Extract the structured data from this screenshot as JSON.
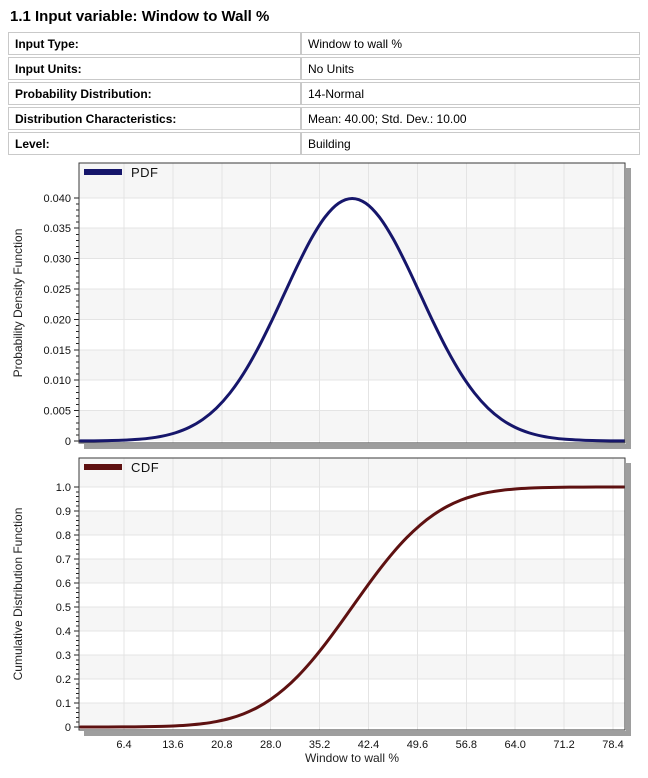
{
  "page": {
    "title": "1.1 Input variable: Window to Wall %"
  },
  "table": {
    "rows": [
      {
        "label": "Input Type:",
        "value": "Window to wall %"
      },
      {
        "label": "Input Units:",
        "value": "No Units"
      },
      {
        "label": "Probability Distribution:",
        "value": "14-Normal"
      },
      {
        "label": "Distribution Characteristics:",
        "value": "Mean: 40.00; Std. Dev.: 10.00"
      },
      {
        "label": "Level:",
        "value": "Building"
      }
    ]
  },
  "colors": {
    "pdf_line": "#16166b",
    "cdf_line": "#5e1111",
    "grid_line": "#e4e4e4",
    "band_gray": "#f6f6f6",
    "band_white": "#ffffff",
    "plot_border": "#3a3a3a",
    "shadow": "#9e9e9e"
  },
  "chart_data": [
    {
      "type": "line",
      "name": "pdf",
      "legend": "PDF",
      "xlabel": "",
      "ylabel": "Probability Density Function",
      "distribution": {
        "type": "Normal",
        "mean": 40.0,
        "std_dev": 10.0
      },
      "xlim": [
        0,
        80
      ],
      "ylim": [
        0,
        0.046
      ],
      "grid": true,
      "legend_position": "top-left",
      "x_ticks": [
        6.4,
        13.6,
        20.8,
        28.0,
        35.2,
        42.4,
        49.6,
        56.8,
        64.0,
        71.2,
        78.4
      ],
      "x_tick_labels_visible": false,
      "y_ticks": [
        "0",
        "0.005",
        "0.010",
        "0.015",
        "0.020",
        "0.025",
        "0.030",
        "0.035",
        "0.040"
      ],
      "y_major_step": 0.005,
      "x": [
        0,
        2,
        4,
        6,
        8,
        10,
        12,
        14,
        16,
        18,
        20,
        22,
        24,
        26,
        28,
        30,
        32,
        34,
        36,
        38,
        40,
        42,
        44,
        46,
        48,
        50,
        52,
        54,
        56,
        58,
        60,
        62,
        64,
        66,
        68,
        70,
        72,
        74,
        76,
        78,
        80
      ],
      "y": [
        1.3e-05,
        2.9e-05,
        6.1e-05,
        0.000123,
        0.000238,
        0.000443,
        0.000792,
        0.001358,
        0.002239,
        0.003548,
        0.005399,
        0.007895,
        0.011092,
        0.014973,
        0.019419,
        0.024197,
        0.028969,
        0.033322,
        0.036827,
        0.039104,
        0.039894,
        0.039104,
        0.036827,
        0.033322,
        0.028969,
        0.024197,
        0.019419,
        0.014973,
        0.011092,
        0.007895,
        0.005399,
        0.003548,
        0.002239,
        0.001358,
        0.000792,
        0.000443,
        0.000238,
        0.000123,
        6.1e-05,
        2.9e-05,
        1.3e-05
      ]
    },
    {
      "type": "line",
      "name": "cdf",
      "legend": "CDF",
      "xlabel": "Window to wall %",
      "ylabel": "Cumulative Distribution Function",
      "distribution": {
        "type": "Normal",
        "mean": 40.0,
        "std_dev": 10.0
      },
      "xlim": [
        0,
        80
      ],
      "ylim": [
        0,
        1.12
      ],
      "grid": true,
      "legend_position": "top-left",
      "x_ticks": [
        6.4,
        13.6,
        20.8,
        28.0,
        35.2,
        42.4,
        49.6,
        56.8,
        64.0,
        71.2,
        78.4
      ],
      "x_tick_labels_visible": true,
      "y_ticks": [
        "0",
        "0.1",
        "0.2",
        "0.3",
        "0.4",
        "0.5",
        "0.6",
        "0.7",
        "0.8",
        "0.9",
        "1.0"
      ],
      "y_major_step": 0.1,
      "x": [
        0,
        2,
        4,
        6,
        8,
        10,
        12,
        14,
        16,
        18,
        20,
        22,
        24,
        26,
        28,
        30,
        32,
        34,
        36,
        38,
        40,
        42,
        44,
        46,
        48,
        50,
        52,
        54,
        56,
        58,
        60,
        62,
        64,
        66,
        68,
        70,
        72,
        74,
        76,
        78,
        80
      ],
      "y": [
        3e-05,
        7e-05,
        0.00016,
        0.00034,
        0.00069,
        0.00135,
        0.00256,
        0.00466,
        0.0082,
        0.0139,
        0.02275,
        0.03593,
        0.0548,
        0.08076,
        0.11507,
        0.15866,
        0.21186,
        0.27425,
        0.34458,
        0.42074,
        0.5,
        0.57926,
        0.65542,
        0.72575,
        0.78814,
        0.84134,
        0.88493,
        0.91924,
        0.9452,
        0.96407,
        0.97725,
        0.9861,
        0.9918,
        0.99534,
        0.99744,
        0.99865,
        0.99931,
        0.99966,
        0.99984,
        0.99993,
        0.99997
      ]
    }
  ]
}
